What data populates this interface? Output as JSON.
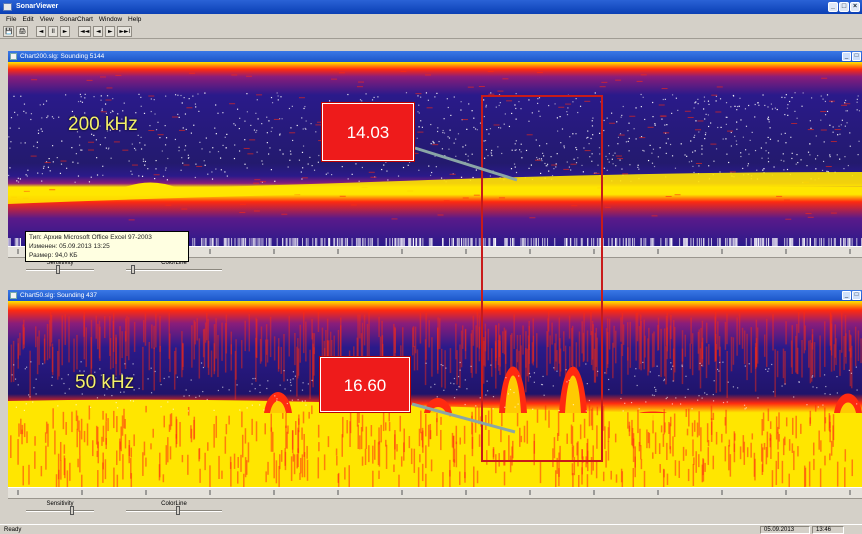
{
  "app": {
    "title": "SonarViewer",
    "window_buttons": [
      "_",
      "□",
      "×"
    ]
  },
  "menu": [
    "File",
    "Edit",
    "View",
    "SonarChart",
    "Window",
    "Help"
  ],
  "toolbar": {
    "buttons": [
      "💾",
      "🖨",
      "◄",
      "II",
      "►",
      "◄◄",
      "◄",
      "►",
      "►►I"
    ]
  },
  "chart_top": {
    "title": "Chart200.slg: Sounding 5144",
    "frequency_label": "200 kHz",
    "depth_callout": "14.03",
    "sensitivity_label": "Sensitivity",
    "colorline_label": "ColorLine"
  },
  "chart_bottom": {
    "title": "Chart50.slg: Sounding 437",
    "frequency_label": "50 kHz",
    "depth_callout": "16.60",
    "sensitivity_label": "Sensitivity",
    "colorline_label": "ColorLine"
  },
  "tooltip": {
    "line1": "Тип: Архив Microsoft Office Excel 97-2003",
    "line2": "Изменен: 05.09.2013 13:25",
    "line3": "Размер: 94,0 КБ"
  },
  "status": {
    "left": "Ready",
    "date": "05.09.2013",
    "time": "13:46"
  },
  "colors": {
    "echo_deep": "#2a1a8a",
    "echo_mid": "#8a1d7a",
    "echo_hot": "#ff2a10",
    "echo_yellow": "#ffe600",
    "callout_red": "#ee1b1b",
    "freq_text": "#f4f06a"
  }
}
